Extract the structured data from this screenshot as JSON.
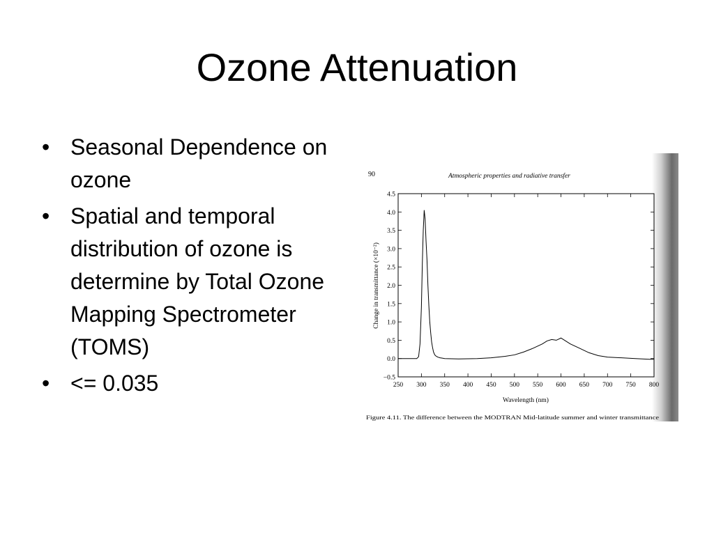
{
  "slide": {
    "title": "Ozone Attenuation",
    "bullets": [
      "Seasonal Dependence on ozone",
      "Spatial and temporal distribution of ozone is determine by Total Ozone Mapping Spectrometer (TOMS)",
      "<= 0.035"
    ],
    "bullet_symbol": "•"
  },
  "figure": {
    "page_number": "90",
    "running_header": "Atmospheric properties and radiative transfer",
    "caption": "Figure 4.11.  The difference between the MODTRAN Mid-latitude summer and winter transmittance"
  },
  "chart_data": {
    "type": "line",
    "xlabel": "Wavelength (nm)",
    "ylabel": "Change in transmittance (×10⁻²)",
    "xlim": [
      250,
      800
    ],
    "ylim": [
      -0.5,
      4.5
    ],
    "x_ticks": [
      250,
      300,
      350,
      400,
      450,
      500,
      550,
      600,
      650,
      700,
      750,
      800
    ],
    "y_ticks": [
      -0.5,
      0.0,
      0.5,
      1.0,
      1.5,
      2.0,
      2.5,
      3.0,
      3.5,
      4.0,
      4.5
    ],
    "y_tick_labels": [
      "−0.5",
      "0.0",
      "0.5",
      "1.0",
      "1.5",
      "2.0",
      "2.5",
      "3.0",
      "3.5",
      "4.0",
      "4.5"
    ],
    "grid": false,
    "series": [
      {
        "x": [
          250,
          290,
          294,
          297,
          300,
          302,
          304,
          306,
          308,
          310,
          312,
          314,
          316,
          318,
          320,
          322,
          324,
          326,
          328,
          330,
          335,
          340,
          350,
          380,
          420,
          450,
          480,
          500,
          520,
          540,
          560,
          570,
          580,
          590,
          600,
          610,
          620,
          640,
          660,
          680,
          700,
          730,
          760,
          790,
          800
        ],
        "y": [
          0.0,
          0.0,
          0.05,
          0.4,
          1.4,
          2.6,
          3.5,
          4.05,
          3.8,
          3.2,
          2.7,
          2.0,
          1.45,
          1.0,
          0.7,
          0.45,
          0.3,
          0.18,
          0.12,
          0.08,
          0.04,
          0.02,
          0.0,
          -0.01,
          0.0,
          0.02,
          0.06,
          0.1,
          0.18,
          0.28,
          0.4,
          0.48,
          0.52,
          0.5,
          0.56,
          0.48,
          0.4,
          0.28,
          0.16,
          0.08,
          0.04,
          0.02,
          0.0,
          -0.02,
          -0.02
        ]
      }
    ]
  },
  "colors": {
    "ink": "#000000",
    "scan_gutter": "#555555"
  }
}
